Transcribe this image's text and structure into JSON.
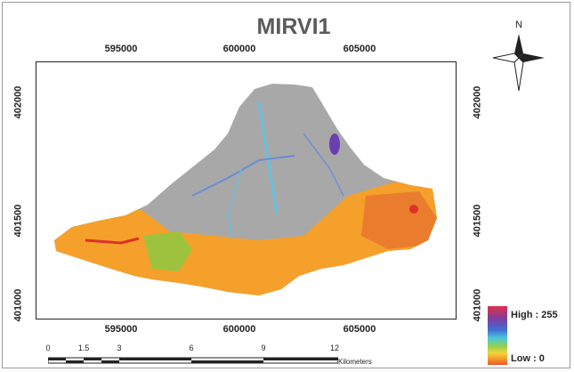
{
  "title": "MIRVI1",
  "x_ticks": [
    "595000",
    "600000",
    "605000"
  ],
  "y_ticks": [
    "402000",
    "401500",
    "401000"
  ],
  "north_label": "N",
  "legend": {
    "high_label": "High : 255",
    "low_label": "Low : 0",
    "colors": [
      "#e0304a",
      "#7b3fa0",
      "#3f6dd6",
      "#4ec9d8",
      "#8fd14f",
      "#f3d23a",
      "#f59a2a",
      "#f0542a"
    ]
  },
  "scale": {
    "labels": [
      "0",
      "1.5",
      "3",
      "6",
      "9",
      "12"
    ],
    "unit": "Kilometers"
  },
  "map_colors": {
    "gray": "#a8a8a8",
    "orange": "#f5a02a",
    "blue": "#5b84e0",
    "cyan": "#58c6e6",
    "purple": "#6a3fb0",
    "red": "#e0302a",
    "green": "#7fcf45"
  }
}
